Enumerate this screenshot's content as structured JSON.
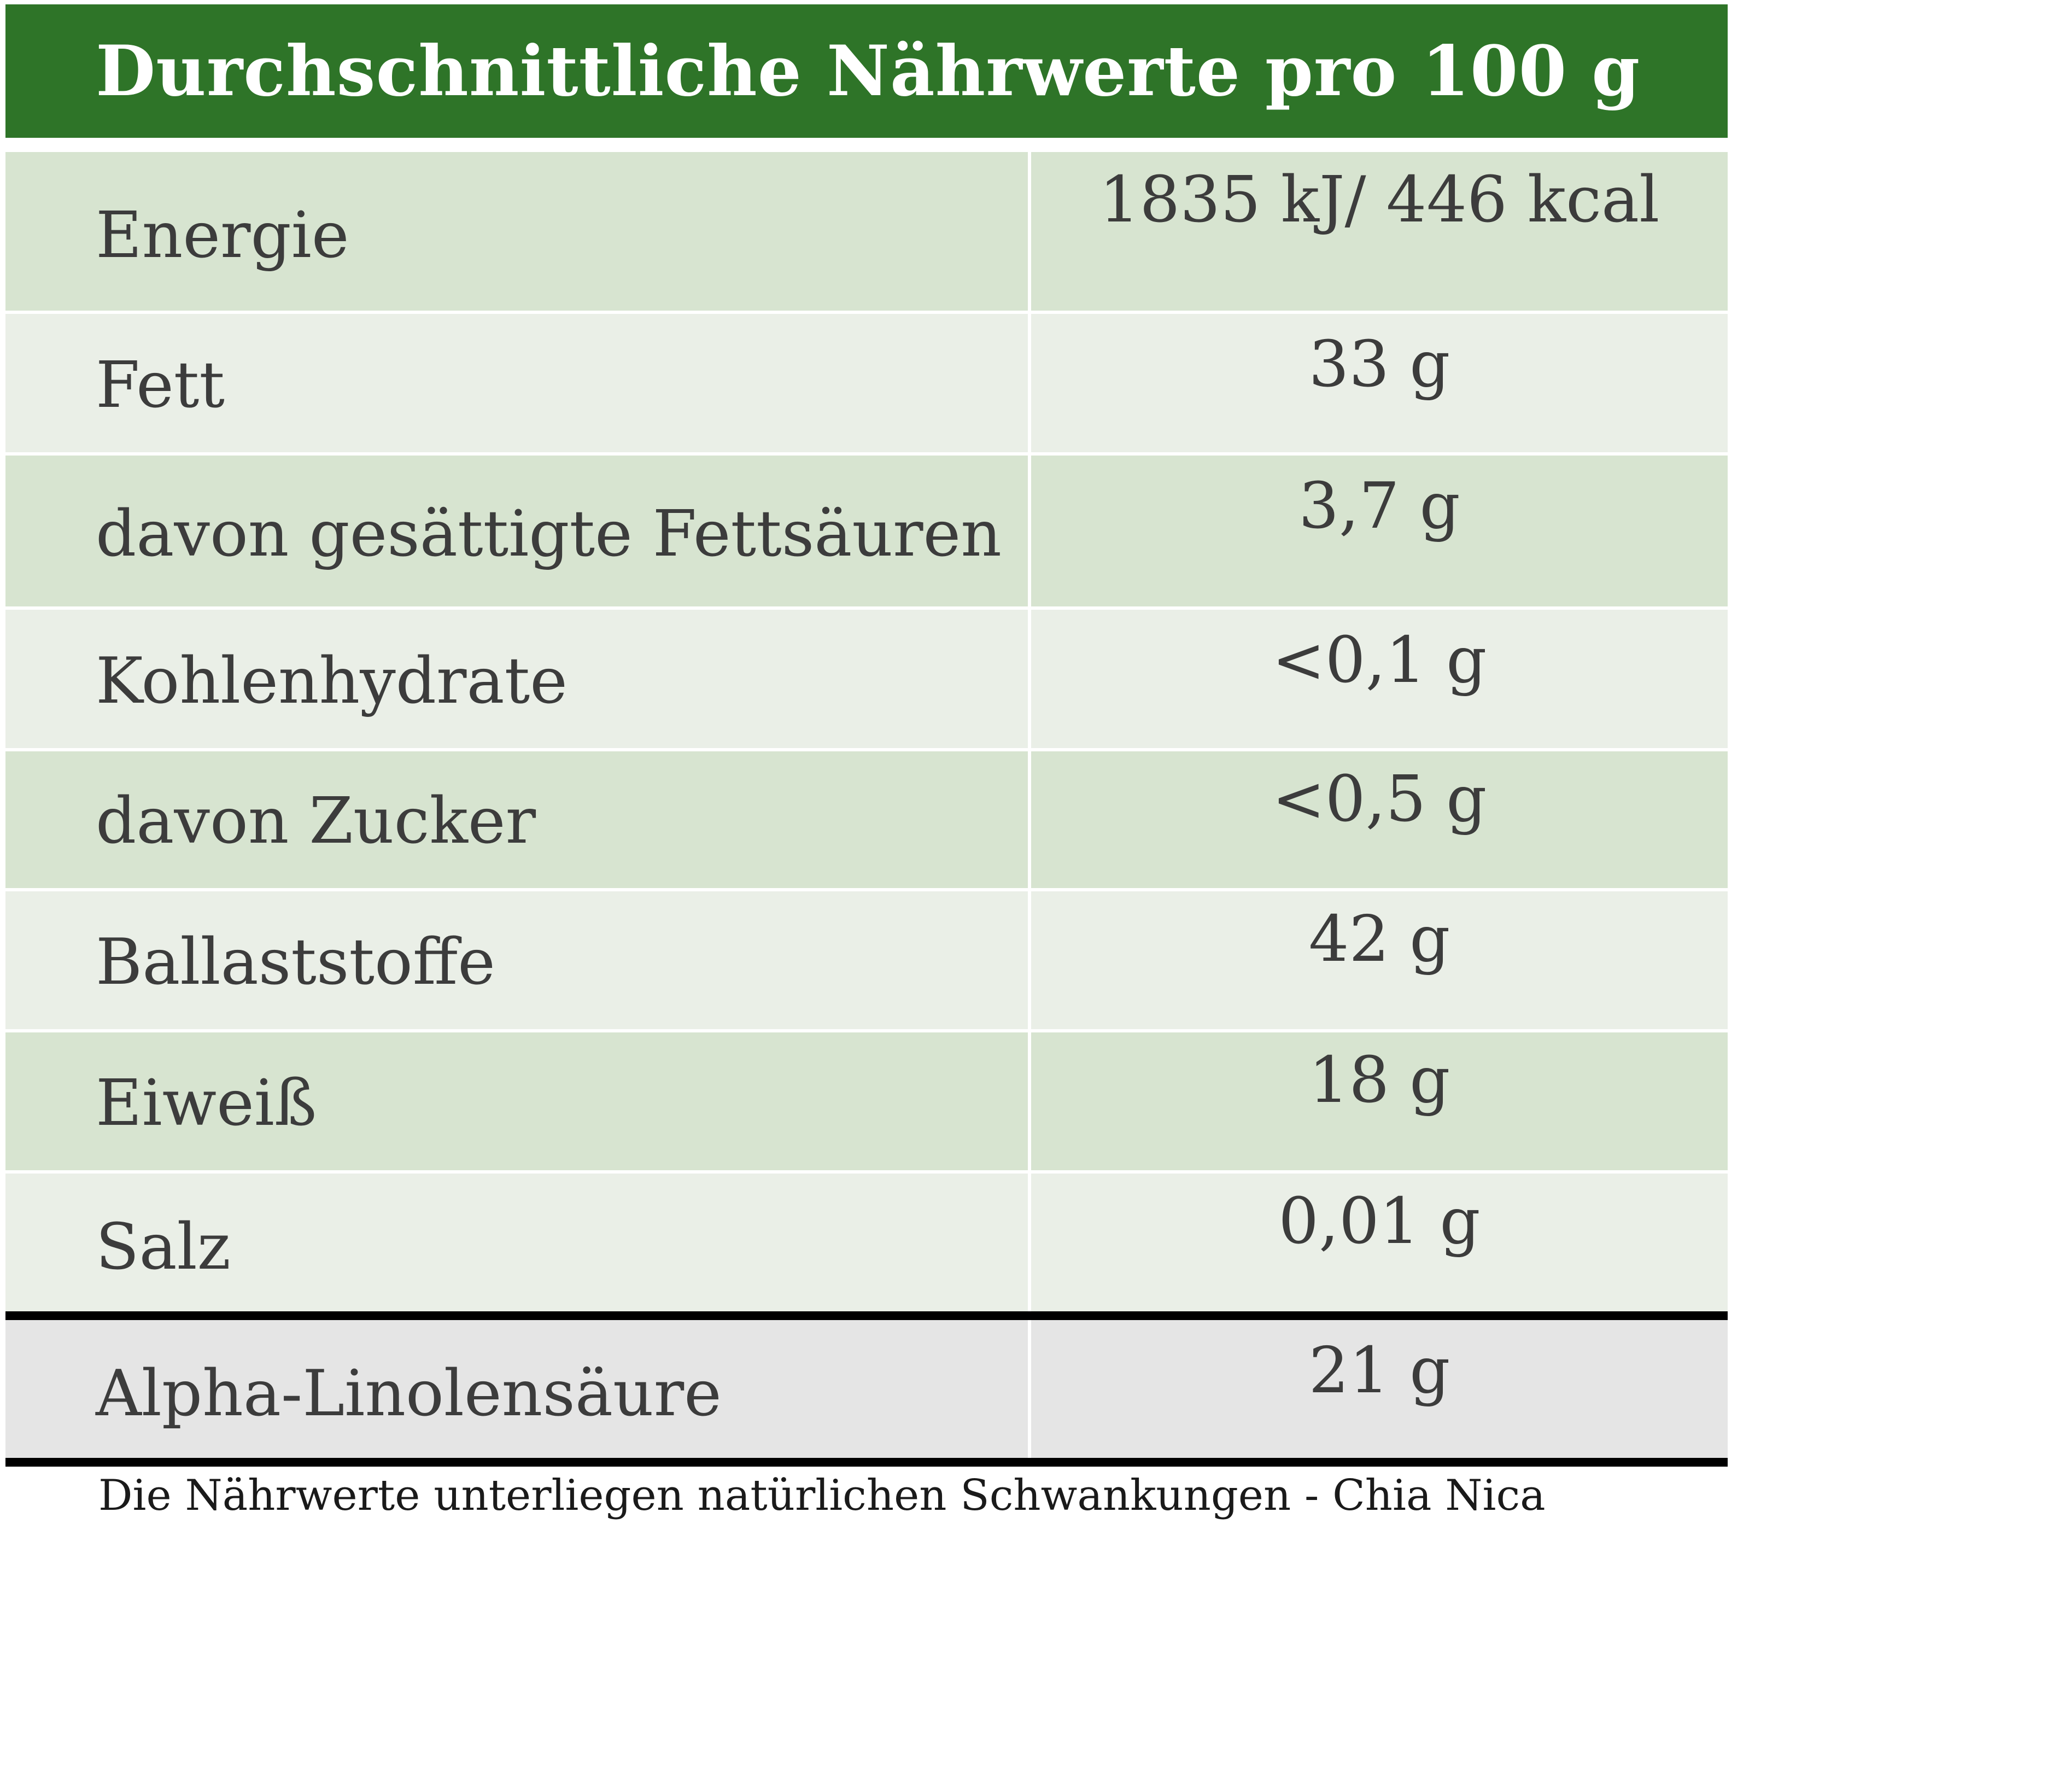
{
  "title": "Durchschnittliche Nährwerte pro 100 g",
  "rows": [
    {
      "label": "Energie",
      "value": "1835 kJ/ 446 kcal"
    },
    {
      "label": "Fett",
      "value": "33 g"
    },
    {
      "label": "davon gesättigte Fettsäuren",
      "value": "3,7 g"
    },
    {
      "label": "Kohlenhydrate",
      "value": "<0,1 g"
    },
    {
      "label": "davon Zucker",
      "value": "<0,5 g"
    },
    {
      "label": "Ballaststoffe",
      "value": "42 g"
    },
    {
      "label": "Eiweiß",
      "value": "18 g"
    },
    {
      "label": "Salz",
      "value": "0,01 g"
    }
  ],
  "extra_row": {
    "label": "Alpha-Linolensäure",
    "value": "21 g"
  },
  "footnote": "Die Nährwerte unterliegen natürlichen Schwankungen -  Chia Nica",
  "colors": {
    "header": "#2e7428",
    "row_dark": "#d7e4d0",
    "row_light": "#eaefe7",
    "row_gray": "#e5e5e5"
  }
}
